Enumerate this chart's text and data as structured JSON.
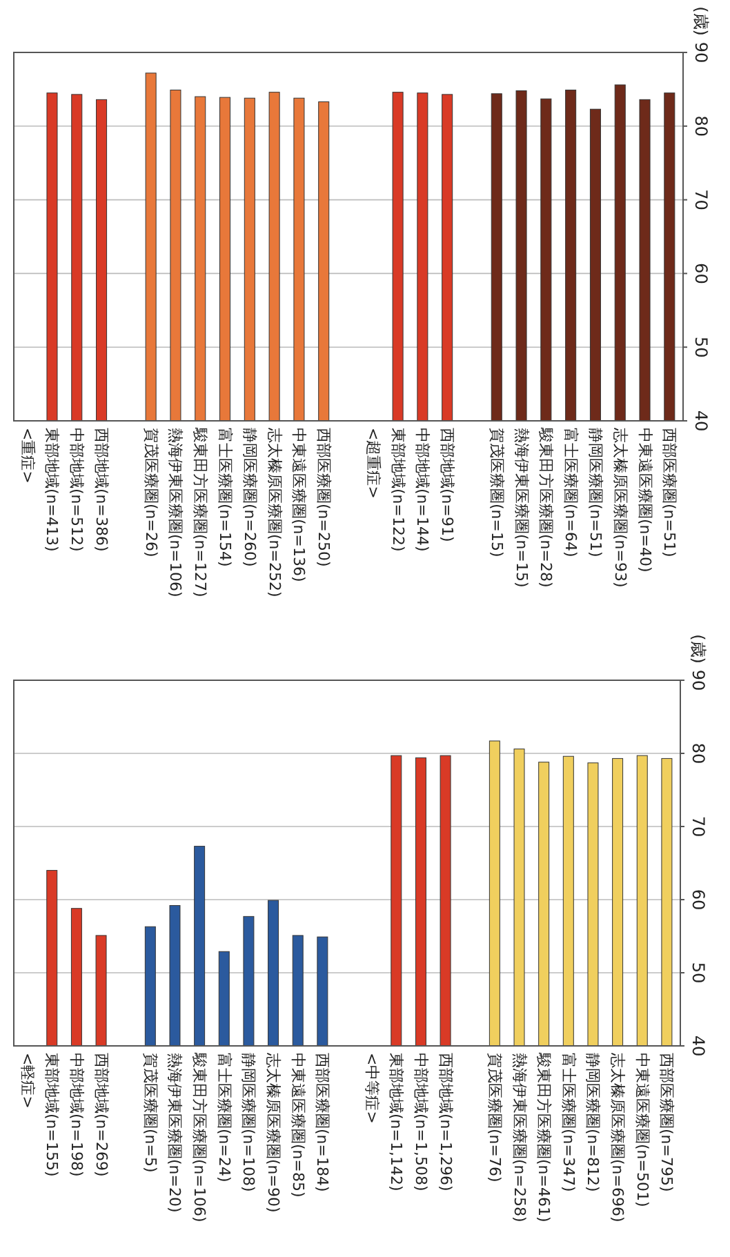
{
  "chart_data": [
    {
      "type": "bar",
      "ylabel": "(歳)",
      "ylim": [
        40,
        90
      ],
      "yticks": [
        40,
        50,
        60,
        70,
        80,
        90
      ],
      "grid": "y",
      "categories": [
        "<重症>",
        "東部地域(n=413)",
        "中部地域(n=512)",
        "西部地域(n=386)",
        null,
        "賀茂医療圏(n=26)",
        "熱海伊東医療圏(n=106)",
        "駿東田方医療圏(n=127)",
        "富士医療圏(n=154)",
        "静岡医療圏(n=260)",
        "志太榛原医療圏(n=252)",
        "中東遠医療圏(n=136)",
        "西部医療圏(n=250)",
        null,
        "<超重症>",
        "東部地域(n=122)",
        "中部地域(n=144)",
        "西部地域(n=91)",
        null,
        "賀茂医療圏(n=15)",
        "熱海伊東医療圏(n=15)",
        "駿東田方医療圏(n=28)",
        "富士医療圏(n=64)",
        "静岡医療圏(n=51)",
        "志太榛原医療圏(n=93)",
        "中東遠医療圏(n=40)",
        "西部医療圏(n=51)"
      ],
      "values": [
        null,
        84.5,
        84.3,
        83.6,
        null,
        87.2,
        84.9,
        84.0,
        83.9,
        83.8,
        84.6,
        83.8,
        83.3,
        null,
        null,
        84.6,
        84.5,
        84.3,
        null,
        84.4,
        84.8,
        83.7,
        84.9,
        82.3,
        85.6,
        83.6,
        84.5
      ],
      "colors": [
        null,
        "#d93a26",
        "#d93a26",
        "#d93a26",
        null,
        "#e8783a",
        "#e8783a",
        "#e8783a",
        "#e8783a",
        "#e8783a",
        "#e8783a",
        "#e8783a",
        "#e8783a",
        null,
        null,
        "#d93a26",
        "#d93a26",
        "#d93a26",
        null,
        "#6e2a1a",
        "#6e2a1a",
        "#6e2a1a",
        "#6e2a1a",
        "#6e2a1a",
        "#6e2a1a",
        "#6e2a1a",
        "#6e2a1a"
      ]
    },
    {
      "type": "bar",
      "ylabel": "(歳)",
      "ylim": [
        40,
        90
      ],
      "yticks": [
        40,
        50,
        60,
        70,
        80,
        90
      ],
      "grid": "y",
      "categories": [
        "<軽症>",
        "東部地域(n=155)",
        "中部地域(n=198)",
        "西部地域(n=269)",
        null,
        "賀茂医療圏(n=5)",
        "熱海伊東医療圏(n=20)",
        "駿東田方医療圏(n=106)",
        "富士医療圏(n=24)",
        "静岡医療圏(n=108)",
        "志太榛原医療圏(n=90)",
        "中東遠医療圏(n=85)",
        "西部医療圏(n=184)",
        null,
        "<中等症>",
        "東部地域(n=1,142)",
        "中部地域(n=1,508)",
        "西部地域(n=1,296)",
        null,
        "賀茂医療圏(n=76)",
        "熱海伊東医療圏(n=258)",
        "駿東田方医療圏(n=461)",
        "富士医療圏(n=347)",
        "静岡医療圏(n=812)",
        "志太榛原医療圏(n=696)",
        "中東遠医療圏(n=501)",
        "西部医療圏(n=795)"
      ],
      "values": [
        null,
        64.0,
        58.8,
        55.1,
        null,
        56.3,
        59.2,
        67.3,
        52.9,
        57.7,
        59.9,
        55.1,
        54.9,
        null,
        null,
        79.7,
        79.4,
        79.7,
        null,
        81.7,
        80.6,
        78.8,
        79.6,
        78.7,
        79.3,
        79.7,
        79.3
      ],
      "colors": [
        null,
        "#d93a26",
        "#d93a26",
        "#d93a26",
        null,
        "#2b5a9e",
        "#2b5a9e",
        "#2b5a9e",
        "#2b5a9e",
        "#2b5a9e",
        "#2b5a9e",
        "#2b5a9e",
        "#2b5a9e",
        null,
        null,
        "#d93a26",
        "#d93a26",
        "#d93a26",
        null,
        "#f0cf5e",
        "#f0cf5e",
        "#f0cf5e",
        "#f0cf5e",
        "#f0cf5e",
        "#f0cf5e",
        "#f0cf5e",
        "#f0cf5e"
      ]
    }
  ]
}
